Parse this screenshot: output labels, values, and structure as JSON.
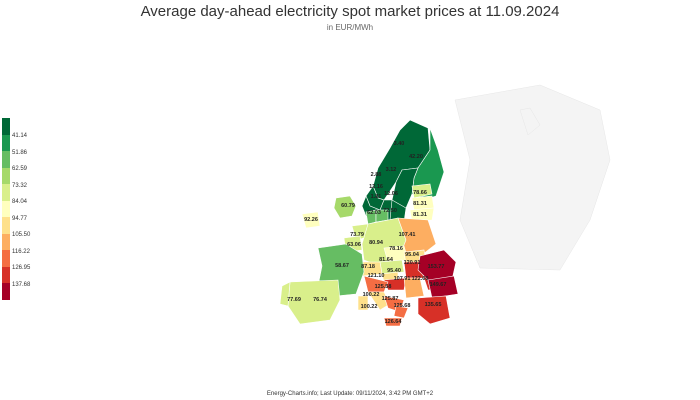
{
  "header": {
    "title": "Average day-ahead electricity spot market prices at 11.09.2024",
    "subtitle": "in EUR/MWh"
  },
  "legend": {
    "ticks": [
      "41.14",
      "51.86",
      "62.59",
      "73.32",
      "84.04",
      "94.77",
      "105.50",
      "116.22",
      "126.95",
      "137.68"
    ],
    "colors": [
      "#006837",
      "#1a9850",
      "#66bd63",
      "#a6d96a",
      "#d9ef8b",
      "#ffffbf",
      "#fee08b",
      "#fdae61",
      "#f46d43",
      "#d73027",
      "#a50026"
    ]
  },
  "price_labels": {
    "no_north": "3.40",
    "fi": "42.20",
    "no_mid": "2.88",
    "no_west": "12.16",
    "se_mid": "3.12",
    "no_south_a": "1.81",
    "no_south_b": "12.06",
    "dk1": "62.03",
    "dk2": "72.50",
    "ee": "78.66",
    "lv": "81.31",
    "lt": "81.31",
    "gb": "60.79",
    "ie": "92.26",
    "pl": "107.41",
    "nl": "73.79",
    "be": "63.06",
    "de": "80.94",
    "cz": "78.16",
    "sk": "95.04",
    "at": "81.64",
    "hu": "120.91",
    "ch": "87.18",
    "si": "95.40",
    "hr": "121.10",
    "ro": "153.77",
    "fr": "58.67",
    "rs": "107.91",
    "ba": "122.60",
    "it_north": "125.58",
    "bg": "149.67",
    "it_centre": "100.22",
    "it_south": "125.87",
    "it_sardinia": "100.22",
    "it_calabria": "125.68",
    "gr": "135.65",
    "it_sicily": "126.64",
    "es": "77.69",
    "pt": "76.74"
  },
  "footer": {
    "text": "Energy-Charts.info; Last Update: 09/11/2024, 3:42 PM GMT+2"
  }
}
